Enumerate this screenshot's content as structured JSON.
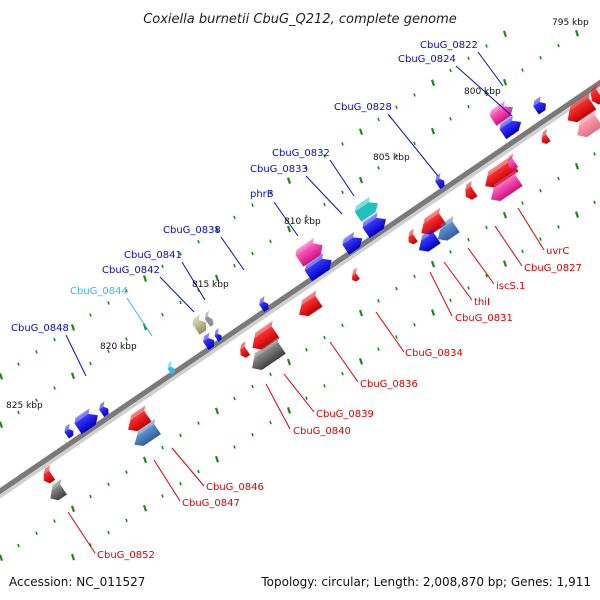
{
  "title": "Coxiella burnetii CbuG_Q212, complete genome",
  "footer": {
    "accession": "Accession: NC_011527",
    "topology": "Topology: circular; Length: 2,008,870 bp; Genes: 1,911"
  },
  "colors": {
    "backbone": "#8a8a8a",
    "forward_label": "#0a0ad0",
    "reverse_label": "#e00000",
    "highlight_label": "#33bbee",
    "tick": "#1a8a1a"
  },
  "kbp_labels": [
    "795 kbp",
    "800 kbp",
    "805 kbp",
    "810 kbp",
    "815 kbp",
    "820 kbp",
    "825 kbp"
  ],
  "forward_genes": [
    "CbuG_0822",
    "CbuG_0824",
    "CbuG_0828",
    "CbuG_0832",
    "CbuG_0833",
    "phrB",
    "CbuG_0838",
    "CbuG_0841",
    "CbuG_0842",
    "CbuG_0844",
    "CbuG_0848"
  ],
  "reverse_genes": [
    "uvrC",
    "CbuG_0827",
    "iscS.1",
    "thiI",
    "CbuG_0831",
    "CbuG_0834",
    "CbuG_0836",
    "CbuG_0839",
    "CbuG_0840",
    "CbuG_0846",
    "CbuG_0847",
    "CbuG_0852"
  ]
}
